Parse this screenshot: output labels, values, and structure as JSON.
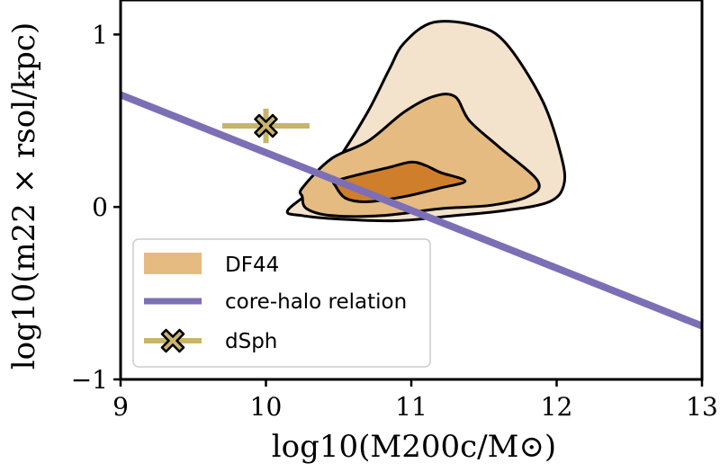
{
  "chart_data": {
    "type": "contour",
    "xlabel": "log10(M200c/M⊙)",
    "ylabel": "log10(m22 × rsol/kpc)",
    "xlim": [
      9,
      13
    ],
    "ylim": [
      -1,
      1.2
    ],
    "xticks": [
      9,
      10,
      11,
      12,
      13
    ],
    "yticks": [
      -1,
      0,
      1
    ],
    "xtick_labels": [
      "9",
      "10",
      "11",
      "12",
      "13"
    ],
    "ytick_labels": [
      "−1",
      "0",
      "1"
    ],
    "grid": false,
    "legend_position": "lower-left",
    "series": [
      {
        "name": "DF44",
        "kind": "filled-contour",
        "levels": [
          {
            "level": "outer",
            "color": "#f3e2cc",
            "points": [
              [
                10.15,
                -0.02
              ],
              [
                10.35,
                0.12
              ],
              [
                10.5,
                0.28
              ],
              [
                10.7,
                0.55
              ],
              [
                10.85,
                0.8
              ],
              [
                10.95,
                0.95
              ],
              [
                11.15,
                1.07
              ],
              [
                11.45,
                1.05
              ],
              [
                11.65,
                0.95
              ],
              [
                11.9,
                0.62
              ],
              [
                12.03,
                0.3
              ],
              [
                12.05,
                0.13
              ],
              [
                11.95,
                0.03
              ],
              [
                11.65,
                -0.02
              ],
              [
                11.3,
                -0.05
              ],
              [
                10.9,
                -0.08
              ],
              [
                10.5,
                -0.07
              ],
              [
                10.25,
                -0.05
              ],
              [
                10.15,
                -0.02
              ]
            ]
          },
          {
            "level": "middle",
            "color": "#e5bb82",
            "points": [
              [
                10.25,
                0.11
              ],
              [
                10.45,
                0.28
              ],
              [
                10.7,
                0.38
              ],
              [
                10.95,
                0.55
              ],
              [
                11.15,
                0.64
              ],
              [
                11.3,
                0.64
              ],
              [
                11.4,
                0.5
              ],
              [
                11.6,
                0.35
              ],
              [
                11.87,
                0.15
              ],
              [
                11.8,
                0.06
              ],
              [
                11.55,
                0.01
              ],
              [
                11.2,
                -0.01
              ],
              [
                10.8,
                -0.05
              ],
              [
                10.45,
                -0.05
              ],
              [
                10.28,
                -0.01
              ],
              [
                10.25,
                0.06
              ],
              [
                10.25,
                0.11
              ]
            ]
          },
          {
            "level": "inner",
            "color": "#cf7e2c",
            "points": [
              [
                10.48,
                0.15
              ],
              [
                10.65,
                0.19
              ],
              [
                10.85,
                0.23
              ],
              [
                11.0,
                0.26
              ],
              [
                11.1,
                0.24
              ],
              [
                11.2,
                0.2
              ],
              [
                11.37,
                0.15
              ],
              [
                11.2,
                0.11
              ],
              [
                10.95,
                0.06
              ],
              [
                10.7,
                0.03
              ],
              [
                10.55,
                0.05
              ],
              [
                10.48,
                0.12
              ],
              [
                10.48,
                0.15
              ]
            ]
          }
        ]
      },
      {
        "name": "core-halo relation",
        "kind": "line",
        "color": "#7d6fb5",
        "x": [
          9,
          13
        ],
        "y": [
          0.65,
          -0.69
        ]
      },
      {
        "name": "dSph",
        "kind": "errorbar",
        "color": "#c8b46a",
        "x": 10.0,
        "y": 0.47,
        "xerr": 0.3,
        "yerr": 0.1
      }
    ],
    "legend": [
      {
        "label": "DF44",
        "color": "#e5bb82"
      },
      {
        "label": "core-halo relation",
        "color": "#7d6fb5"
      },
      {
        "label": "dSph",
        "color": "#c8b46a"
      }
    ]
  }
}
